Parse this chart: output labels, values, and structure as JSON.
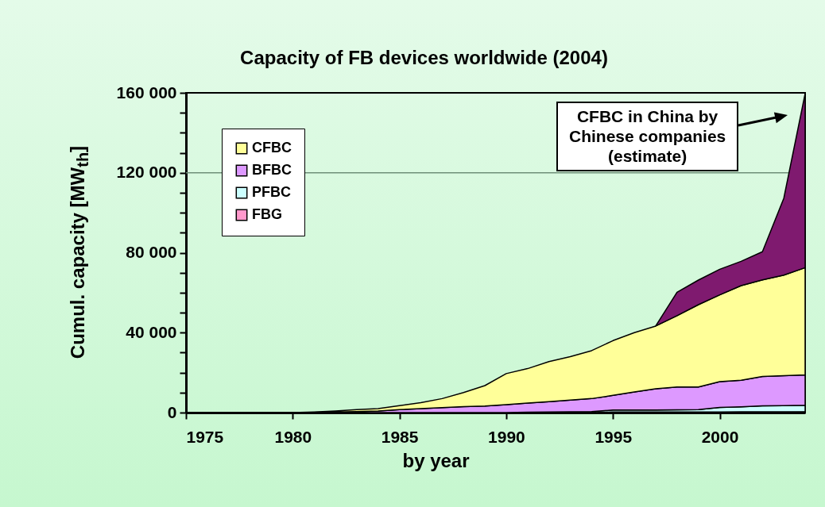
{
  "chart_data": {
    "type": "area",
    "title": "Capacity of FB devices worldwide (2004)",
    "xlabel": "by year",
    "ylabel": "Cumul. capacity [MW$_{th}$]",
    "x": [
      1975,
      1976,
      1977,
      1978,
      1979,
      1980,
      1981,
      1982,
      1983,
      1984,
      1985,
      1986,
      1987,
      1988,
      1989,
      1990,
      1991,
      1992,
      1993,
      1994,
      1995,
      1996,
      1997,
      1998,
      1999,
      2000,
      2001,
      2002,
      2003,
      2004
    ],
    "stacked": true,
    "legend": "top left",
    "grid": false,
    "series": [
      {
        "name": "FBG",
        "color": "#ff99cc",
        "values": [
          0,
          0,
          0,
          0,
          0,
          0,
          0,
          0,
          0,
          0,
          0,
          0,
          0,
          0,
          0,
          0,
          0,
          0,
          0,
          0,
          300,
          300,
          300,
          300,
          300,
          300,
          400,
          400,
          400,
          500
        ]
      },
      {
        "name": "PFBC",
        "color": "#ccffff",
        "values": [
          0,
          0,
          0,
          0,
          0,
          0,
          0,
          0,
          0,
          0,
          0,
          0,
          0,
          0,
          0,
          0,
          200,
          300,
          400,
          500,
          1000,
          1000,
          1000,
          1100,
          1200,
          2300,
          2500,
          3000,
          3100,
          3200
        ]
      },
      {
        "name": "BFBC",
        "color": "#dd99ff",
        "values": [
          0,
          0,
          0,
          0,
          0,
          0,
          100,
          300,
          500,
          800,
          1500,
          2000,
          2500,
          3000,
          3300,
          4000,
          4600,
          5200,
          5900,
          6500,
          7300,
          9000,
          10600,
          11400,
          11300,
          12900,
          13300,
          14700,
          15000,
          15200
        ]
      },
      {
        "name": "CFBC",
        "color": "#ffff99",
        "values": [
          0,
          0,
          0,
          0,
          0,
          0,
          200,
          500,
          1000,
          1200,
          2000,
          3000,
          4500,
          7000,
          10200,
          15500,
          17200,
          20000,
          21700,
          24000,
          27400,
          29700,
          31400,
          35700,
          41200,
          43400,
          47300,
          48300,
          50300,
          53600
        ]
      },
      {
        "color": "#7f1a6f",
        "values": [
          null,
          null,
          null,
          null,
          null,
          null,
          null,
          null,
          null,
          null,
          null,
          null,
          null,
          null,
          null,
          null,
          null,
          null,
          null,
          null,
          null,
          null,
          0,
          11700,
          12300,
          12800,
          12200,
          14100,
          38400,
          87100
        ]
      }
    ],
    "xlim": [
      1975,
      2004
    ],
    "xticks": [
      1975,
      1980,
      1985,
      1990,
      1995,
      2000
    ],
    "ylim": [
      0,
      160000
    ],
    "yticks": [
      0,
      {
        "value": 10000,
        "label": null
      },
      {
        "value": 20000,
        "label": null
      },
      {
        "value": 30000,
        "label": null
      },
      {
        "value": 40000,
        "label": "40 000"
      },
      {
        "value": 50000,
        "label": null
      },
      {
        "value": 60000,
        "label": null
      },
      {
        "value": 70000,
        "label": null
      },
      {
        "value": 80000,
        "label": "80 000"
      },
      {
        "value": 90000,
        "label": null
      },
      {
        "value": 100000,
        "label": null
      },
      {
        "value": 110000,
        "label": null
      },
      {
        "value": 120000,
        "label": "120 000"
      },
      {
        "value": 130000,
        "label": null
      },
      {
        "value": 140000,
        "label": null
      },
      {
        "value": 150000,
        "label": null
      },
      {
        "value": 160000,
        "label": "160 000"
      }
    ],
    "ref_lines": [
      {
        "axis": "y",
        "value": 120000,
        "color": "#6f8f78"
      }
    ],
    "annotations": [
      "CFBC in China by\nChinese companies\n(estimate)"
    ]
  }
}
